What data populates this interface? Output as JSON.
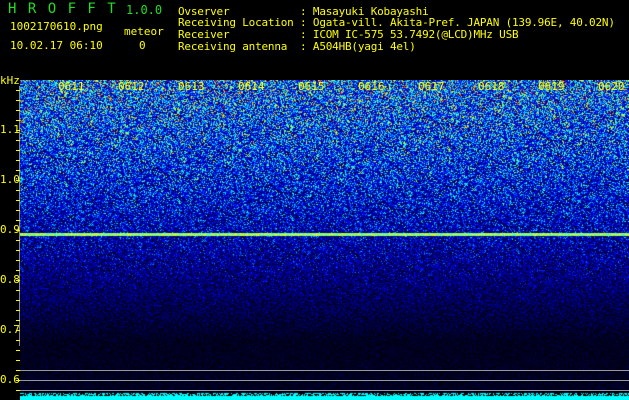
{
  "header": {
    "app_name": "H R O F F T",
    "version": "1.0.0",
    "filename": "1002170610.png",
    "datetime": "10.02.17 06:10",
    "meteor_label": "meteor",
    "meteor_count": "0"
  },
  "info": [
    {
      "label": "Ovserver          ",
      "value": ": Masayuki Kobayashi"
    },
    {
      "label": "Receiving Location",
      "value": ": Ogata-vill. Akita-Pref. JAPAN (139.96E, 40.02N)"
    },
    {
      "label": "Receiver          ",
      "value": ": ICOM IC-575 53.7492(@LCD)MHz USB"
    },
    {
      "label": "Receiving antenna ",
      "value": ": A504HB(yagi 4el)"
    }
  ],
  "spectrogram": {
    "y_unit": "kHz",
    "y_ticks": [
      "1.1",
      "1.0",
      "0.9",
      "0.8",
      "0.7",
      "0.6"
    ],
    "time_ticks": [
      "0611",
      "0612",
      "0613",
      "0614",
      "0615",
      "0616",
      "0617",
      "0618",
      "0619",
      "0620"
    ],
    "text_color": "#ffff00",
    "baseline_color": "#00ffff"
  }
}
